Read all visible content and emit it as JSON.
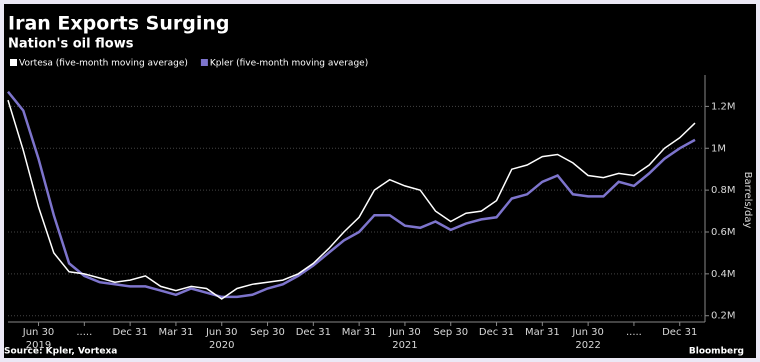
{
  "chart_data": {
    "type": "line",
    "title": "Iran Exports Surging",
    "subtitle": "Nation's oil flows",
    "y_axis_label": "Barrels/day",
    "source": "Source: Kpler, Vortexa",
    "brand": "Bloomberg",
    "categories": [
      null,
      null,
      "Jun 30",
      null,
      null,
      ".....",
      null,
      null,
      "Dec 31",
      null,
      null,
      "Mar 31",
      null,
      null,
      "Jun 30",
      null,
      null,
      "Sep 30",
      null,
      null,
      "Dec 31",
      null,
      null,
      "Mar 31",
      null,
      null,
      "Jun 30",
      null,
      null,
      "Sep 30",
      null,
      null,
      "Dec 31",
      null,
      null,
      "Mar 31",
      null,
      null,
      "Jun 30",
      null,
      null,
      ".....",
      null,
      null,
      "Dec 31",
      null
    ],
    "years": [
      "2019",
      "2020",
      "2021",
      "2022"
    ],
    "series": [
      {
        "name": "Vortesa (five-month moving average)",
        "color": "#ffffff",
        "values": [
          1230000,
          990000,
          720000,
          500000,
          410000,
          400000,
          380000,
          360000,
          370000,
          390000,
          340000,
          320000,
          340000,
          330000,
          280000,
          330000,
          350000,
          360000,
          370000,
          400000,
          450000,
          520000,
          600000,
          670000,
          800000,
          850000,
          820000,
          800000,
          700000,
          650000,
          690000,
          700000,
          750000,
          900000,
          920000,
          960000,
          970000,
          930000,
          870000,
          860000,
          880000,
          870000,
          920000,
          1000000,
          1050000,
          1120000
        ]
      },
      {
        "name": "Kpler (five-month moving average)",
        "color": "#7d74cc",
        "values": [
          1270000,
          1180000,
          950000,
          680000,
          450000,
          390000,
          360000,
          350000,
          340000,
          340000,
          320000,
          300000,
          330000,
          310000,
          290000,
          290000,
          300000,
          330000,
          350000,
          390000,
          440000,
          500000,
          560000,
          600000,
          680000,
          680000,
          630000,
          620000,
          650000,
          610000,
          640000,
          660000,
          670000,
          760000,
          780000,
          840000,
          870000,
          780000,
          770000,
          770000,
          840000,
          820000,
          880000,
          950000,
          1000000,
          1040000
        ]
      }
    ],
    "ylim": [
      170000,
      1350000
    ],
    "yticks": [
      {
        "value": 200000,
        "label": "0.2M"
      },
      {
        "value": 400000,
        "label": "0.4M"
      },
      {
        "value": 600000,
        "label": "0.6M"
      },
      {
        "value": 800000,
        "label": "0.8M"
      },
      {
        "value": 1000000,
        "label": "1M"
      },
      {
        "value": 1200000,
        "label": "1.2M"
      }
    ],
    "grid": true
  }
}
